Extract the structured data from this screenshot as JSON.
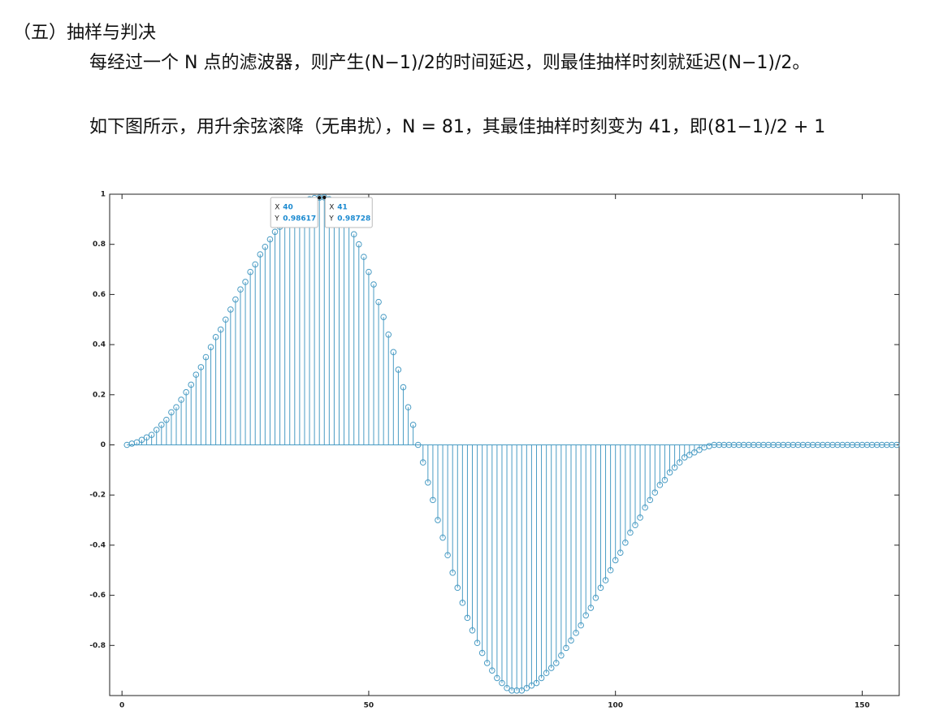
{
  "heading": "（五）抽样与判决",
  "paragraphs": [
    "每经过一个 N 点的滤波器，则产生(N−1)/2的时间延迟，则最佳抽样时刻就延迟(N−1)/2。",
    "如下图所示，用升余弦滚降（无串扰），N = 81，其最佳抽样时刻变为 41，即(81−1)/2 + 1"
  ],
  "chart_data": {
    "type": "stem",
    "color": "#4a9cc4",
    "xlim": [
      -2.5,
      157.5
    ],
    "ylim": [
      -1,
      1
    ],
    "xticks": [
      0,
      50,
      100,
      150
    ],
    "yticks": [
      -0.8,
      -0.6,
      -0.4,
      -0.2,
      0,
      0.2,
      0.4,
      0.6,
      0.8,
      1
    ],
    "x": [
      1,
      2,
      3,
      4,
      5,
      6,
      7,
      8,
      9,
      10,
      11,
      12,
      13,
      14,
      15,
      16,
      17,
      18,
      19,
      20,
      21,
      22,
      23,
      24,
      25,
      26,
      27,
      28,
      29,
      30,
      31,
      32,
      33,
      34,
      35,
      36,
      37,
      38,
      39,
      40,
      41,
      42,
      43,
      44,
      45,
      46,
      47,
      48,
      49,
      50,
      51,
      52,
      53,
      54,
      55,
      56,
      57,
      58,
      59,
      60,
      61,
      62,
      63,
      64,
      65,
      66,
      67,
      68,
      69,
      70,
      71,
      72,
      73,
      74,
      75,
      76,
      77,
      78,
      79,
      80,
      81,
      82,
      83,
      84,
      85,
      86,
      87,
      88,
      89,
      90,
      91,
      92,
      93,
      94,
      95,
      96,
      97,
      98,
      99,
      100,
      101,
      102,
      103,
      104,
      105,
      106,
      107,
      108,
      109,
      110,
      111,
      112,
      113,
      114,
      115,
      116,
      117,
      118,
      119,
      120,
      121,
      122,
      123,
      124,
      125,
      126,
      127,
      128,
      129,
      130,
      131,
      132,
      133,
      134,
      135,
      136,
      137,
      138,
      139,
      140,
      141,
      142,
      143,
      144,
      145,
      146,
      147,
      148,
      149,
      150,
      151,
      152,
      153,
      154,
      155,
      156,
      157
    ],
    "values": [
      0,
      0.005,
      0.01,
      0.02,
      0.03,
      0.04,
      0.06,
      0.08,
      0.1,
      0.13,
      0.15,
      0.18,
      0.21,
      0.24,
      0.28,
      0.31,
      0.35,
      0.39,
      0.43,
      0.46,
      0.5,
      0.54,
      0.58,
      0.62,
      0.65,
      0.69,
      0.72,
      0.76,
      0.79,
      0.82,
      0.85,
      0.87,
      0.9,
      0.92,
      0.94,
      0.95,
      0.97,
      0.98,
      0.985,
      0.98617,
      0.98728,
      0.98,
      0.96,
      0.94,
      0.91,
      0.88,
      0.84,
      0.8,
      0.75,
      0.69,
      0.64,
      0.57,
      0.51,
      0.44,
      0.37,
      0.3,
      0.23,
      0.15,
      0.08,
      0,
      -0.07,
      -0.15,
      -0.22,
      -0.3,
      -0.37,
      -0.44,
      -0.51,
      -0.57,
      -0.63,
      -0.69,
      -0.74,
      -0.79,
      -0.83,
      -0.87,
      -0.9,
      -0.93,
      -0.95,
      -0.97,
      -0.98,
      -0.98,
      -0.98,
      -0.97,
      -0.96,
      -0.95,
      -0.93,
      -0.91,
      -0.89,
      -0.87,
      -0.84,
      -0.81,
      -0.78,
      -0.75,
      -0.72,
      -0.68,
      -0.65,
      -0.61,
      -0.57,
      -0.54,
      -0.5,
      -0.46,
      -0.43,
      -0.39,
      -0.35,
      -0.32,
      -0.29,
      -0.25,
      -0.22,
      -0.19,
      -0.16,
      -0.14,
      -0.11,
      -0.09,
      -0.07,
      -0.05,
      -0.04,
      -0.03,
      -0.02,
      -0.01,
      -0.005,
      0,
      0,
      0,
      0,
      0,
      0,
      0,
      0,
      0,
      0,
      0,
      0,
      0,
      0,
      0,
      0,
      0,
      0,
      0,
      0,
      0,
      0,
      0,
      0,
      0,
      0,
      0,
      0,
      0,
      0,
      0,
      0,
      0,
      0,
      0,
      0,
      0,
      0
    ],
    "datatips": [
      {
        "x_label": "X",
        "x": 40,
        "y_label": "Y",
        "y": 0.98617
      },
      {
        "x_label": "X",
        "x": 41,
        "y_label": "Y",
        "y": 0.98728
      }
    ]
  }
}
